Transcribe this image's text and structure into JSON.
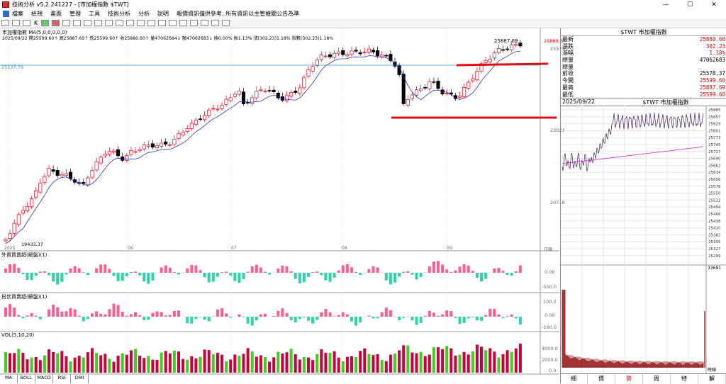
{
  "window": {
    "title": "技術分析 v5.2.241227 - [市加權指數 $TWT]",
    "min": "—",
    "max": "☐",
    "close": "✕"
  },
  "menu": [
    "檔案",
    "檢視",
    "畫面",
    "管理",
    "工具",
    "技術分析",
    "分析",
    "說明",
    "報價資訊僅供參考, 所有資訊以主管機關公告為準"
  ],
  "toolbar": {
    "k_label": "K"
  },
  "main": {
    "title": "市加權指數  MA(5,0,0,0,0,0)",
    "info": "2025/09/22  開25599.60↑ 高25887.69↑ 低25599.60↑ 收25880.60↑ 量47062684↓ 額47062683↓ 換0.00% 振1.13% 漲(302.23)1.18% 指數(302.23)1.18%",
    "price_labels": [
      {
        "label": "25887.69",
        "pos": "high"
      },
      {
        "label": "19433.37",
        "pos": "low"
      }
    ],
    "hline_label": "25137.79",
    "y_ticks": [
      "25573",
      "23023",
      "20718"
    ],
    "last_price_tag": "25880.6",
    "x_labels": [
      "2025",
      "06",
      "07",
      "08",
      "09"
    ],
    "corner_label": "日線"
  },
  "panels": [
    {
      "title": "外資買賣超(解盤)(1)",
      "ticks": [
        "0.00",
        "-500.0"
      ]
    },
    {
      "title": "投信買賣超(解盤)(1)",
      "ticks": [
        "100.0",
        "0.00",
        "-100.0"
      ]
    },
    {
      "title": "VOL(5,10,20)",
      "ticks": [
        "4000.0",
        "2000.0",
        "0.0"
      ]
    }
  ],
  "left_tabs": [
    "MA",
    "BOLL",
    "MACD",
    "RSI",
    "DMI"
  ],
  "quote": {
    "header": "$TWT 市加權指數",
    "rows": [
      {
        "label": "最新",
        "value": "25880.60",
        "color": "red"
      },
      {
        "label": "漲跌",
        "value": "302.23",
        "color": "red"
      },
      {
        "label": "漲幅",
        "value": "1.18%",
        "color": "red"
      },
      {
        "label": "總量",
        "value": "47062683",
        "color": "black"
      },
      {
        "label": "總量",
        "value": "",
        "color": "black"
      },
      {
        "label": "前收",
        "value": "25578.37",
        "color": "black"
      },
      {
        "label": "今開",
        "value": "25599.60",
        "color": "red"
      },
      {
        "label": "最高",
        "value": "25887.69",
        "color": "red"
      },
      {
        "label": "最低",
        "value": "25599.60",
        "color": "red"
      }
    ]
  },
  "mini": {
    "date": "2025/09/22",
    "name": "$TWT 市加權指數",
    "y_ticks": [
      "25885",
      "25857",
      "25829",
      "25801",
      "25773",
      "25745",
      "25717",
      "25690",
      "25662",
      "25634",
      "25606",
      "25578",
      "25550",
      "25522",
      "25494",
      "25466",
      "25438",
      "25410",
      "25382",
      "25355",
      "25327",
      "25299"
    ],
    "vol_label": "33691",
    "corner_label": "時線"
  },
  "bottom_tabs": [
    "細",
    "價",
    "勢",
    "周",
    "特",
    "解"
  ],
  "colors": {
    "up": "#e2001a",
    "down": "#000000",
    "ma": "#3030c0",
    "hline": "#3399cc",
    "support": "#dd1111",
    "foreign": "#ff5f8f",
    "trust": "#ff5f8f",
    "negative": "#2ed3a8",
    "vol_up": "#c8003c",
    "vol_down": "#44cc22"
  }
}
